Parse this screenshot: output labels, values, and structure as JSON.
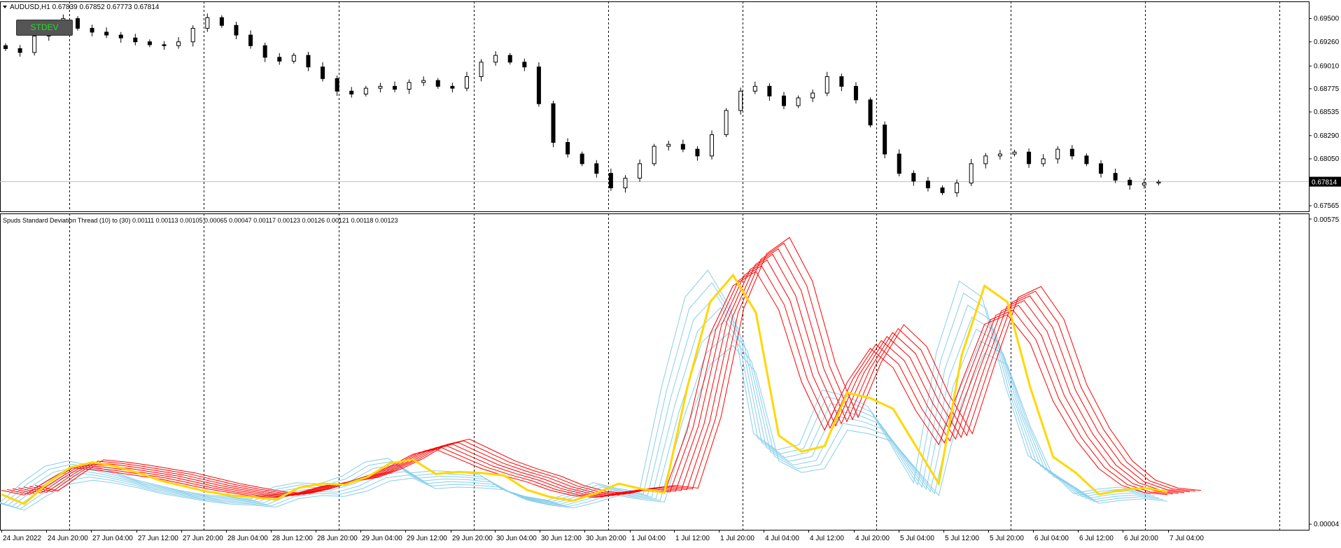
{
  "top": {
    "title": "AUDUSD,H1  0.67839 0.67852 0.67773 0.67814",
    "button": "STDEV",
    "price_axis": [
      "0.69500",
      "0.69260",
      "0.69010",
      "0.68775",
      "0.68535",
      "0.68290",
      "0.68050",
      "0.67814",
      "0.67565"
    ],
    "current_price": "0.67814"
  },
  "bottom": {
    "title": "Spuds Standard Deviation Thread (10) to (30) 0.00111 0.00113 0.00105 0.00065 0.00047 0.00117 0.00123 0.00126 0.00121 0.00118 0.00123",
    "axis_max": "0.00575",
    "axis_min": "0.00004"
  },
  "time_axis": [
    "24 Jun 2022",
    "24 Jun 20:00",
    "27 Jun 04:00",
    "27 Jun 12:00",
    "27 Jun 20:00",
    "28 Jun 04:00",
    "28 Jun 12:00",
    "28 Jun 20:00",
    "29 Jun 04:00",
    "29 Jun 12:00",
    "29 Jun 20:00",
    "30 Jun 04:00",
    "30 Jun 12:00",
    "30 Jun 20:00",
    "1 Jul 04:00",
    "1 Jul 12:00",
    "1 Jul 20:00",
    "4 Jul 04:00",
    "4 Jul 12:00",
    "4 Jul 20:00",
    "5 Jul 04:00",
    "5 Jul 12:00",
    "5 Jul 20:00",
    "6 Jul 04:00",
    "6 Jul 12:00",
    "6 Jul 20:00",
    "7 Jul 04:00"
  ],
  "colors": {
    "background": "#ffffff",
    "grid": "#000000",
    "bull_candle": "#ffffff",
    "bear_candle": "#000000",
    "thread_fast": "#87ceeb",
    "thread_slow": "#ff0000",
    "thread_main": "#ffd700",
    "button_text": "#22dd22"
  },
  "chart_data": [
    {
      "type": "candlestick",
      "title": "AUDUSD,H1",
      "ylim": [
        0.67565,
        0.6962
      ],
      "close_series": [
        0.6919,
        0.6915,
        0.6932,
        0.6945,
        0.695,
        0.694,
        0.6936,
        0.6933,
        0.693,
        0.6926,
        0.6923,
        0.6922,
        0.6926,
        0.694,
        0.6951,
        0.6943,
        0.6933,
        0.6922,
        0.691,
        0.6906,
        0.6912,
        0.69,
        0.6888,
        0.6875,
        0.6872,
        0.6878,
        0.688,
        0.6877,
        0.6884,
        0.6886,
        0.688,
        0.6878,
        0.689,
        0.6905,
        0.6912,
        0.6905,
        0.69,
        0.6862,
        0.6822,
        0.681,
        0.68,
        0.679,
        0.6775,
        0.6785,
        0.68,
        0.6818,
        0.682,
        0.6815,
        0.6808,
        0.683,
        0.6855,
        0.6875,
        0.688,
        0.687,
        0.686,
        0.6868,
        0.6873,
        0.689,
        0.688,
        0.6866,
        0.684,
        0.681,
        0.679,
        0.6782,
        0.6775,
        0.677,
        0.678,
        0.68,
        0.6808,
        0.681,
        0.6812,
        0.68,
        0.6805,
        0.6815,
        0.6808,
        0.68,
        0.679,
        0.6783,
        0.6778,
        0.678,
        0.6781
      ],
      "current": 0.67814
    },
    {
      "type": "line",
      "title": "Spuds Standard Deviation Thread (10) to (30)",
      "ylim": [
        4e-05,
        0.00575
      ],
      "series": [
        {
          "name": "",
          "color": "#ffd700",
          "values": [
            0.0006,
            0.00042,
            0.0008,
            0.0011,
            0.0012,
            0.00112,
            0.001,
            0.00085,
            0.00075,
            0.00065,
            0.00058,
            0.00055,
            0.0005,
            0.00072,
            0.0008,
            0.00078,
            0.00092,
            0.00118,
            0.00125,
            0.00098,
            0.00102,
            0.001,
            0.00095,
            0.00068,
            0.00055,
            0.00048,
            0.00062,
            0.0008,
            0.0007,
            0.00063,
            0.0026,
            0.0042,
            0.0047,
            0.004,
            0.0017,
            0.0014,
            0.0015,
            0.0025,
            0.0024,
            0.0022,
            0.0015,
            0.0008,
            0.0032,
            0.0045,
            0.0042,
            0.0026,
            0.0013,
            0.001,
            0.0006,
            0.00068,
            0.00072,
            0.00065
          ]
        },
        {
          "name": "",
          "color": "#ff0000",
          "values": [
            0.00075,
            0.00065,
            0.00095,
            0.00122,
            0.00118,
            0.00112,
            0.00105,
            0.00098,
            0.00088,
            0.00078,
            0.0007,
            0.00063,
            0.0006,
            0.0007,
            0.00083,
            0.0009,
            0.00105,
            0.00125,
            0.0015,
            0.0016,
            0.0014,
            0.0012,
            0.00105,
            0.00092,
            0.00075,
            0.00064,
            0.0006,
            0.0007,
            0.00075,
            0.0007,
            0.002,
            0.004,
            0.005,
            0.0053,
            0.0045,
            0.003,
            0.002,
            0.003,
            0.0037,
            0.0033,
            0.0024,
            0.0017,
            0.003,
            0.0042,
            0.0044,
            0.0038,
            0.0026,
            0.0018,
            0.0012,
            0.00085,
            0.0007,
            0.00066
          ]
        }
      ]
    }
  ]
}
